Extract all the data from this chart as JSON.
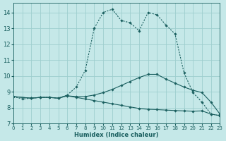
{
  "xlabel": "Humidex (Indice chaleur)",
  "bg_color": "#c5e8e8",
  "grid_color": "#9ecece",
  "line_color": "#1a5f5f",
  "xlim": [
    0,
    23
  ],
  "ylim": [
    7,
    14.6
  ],
  "xticks": [
    0,
    1,
    2,
    3,
    4,
    5,
    6,
    7,
    8,
    9,
    10,
    11,
    12,
    13,
    14,
    15,
    16,
    17,
    18,
    19,
    20,
    21,
    22,
    23
  ],
  "yticks": [
    7,
    8,
    9,
    10,
    11,
    12,
    13,
    14
  ],
  "line1_x": [
    0,
    1,
    2,
    3,
    4,
    5,
    6,
    7,
    8,
    9,
    10,
    11,
    12,
    13,
    14,
    15,
    16,
    17,
    18,
    19,
    20,
    21,
    22,
    23
  ],
  "line1_y": [
    8.7,
    8.55,
    8.6,
    8.65,
    8.65,
    8.6,
    8.8,
    9.3,
    10.35,
    13.0,
    14.0,
    14.2,
    13.5,
    13.35,
    12.85,
    14.0,
    13.85,
    13.2,
    12.65,
    10.2,
    8.95,
    8.35,
    7.6,
    7.5
  ],
  "line2_x": [
    0,
    2,
    3,
    4,
    5,
    6,
    7,
    8,
    9,
    10,
    11,
    12,
    13,
    14,
    15,
    16,
    17,
    18,
    19,
    20,
    21,
    22,
    23
  ],
  "line2_y": [
    8.7,
    8.6,
    8.65,
    8.65,
    8.6,
    8.75,
    8.7,
    8.7,
    8.8,
    8.95,
    9.15,
    9.4,
    9.65,
    9.9,
    10.1,
    10.1,
    9.8,
    9.55,
    9.3,
    9.1,
    8.95,
    8.35,
    7.6
  ],
  "line3_x": [
    0,
    2,
    3,
    4,
    5,
    6,
    7,
    8,
    9,
    10,
    11,
    12,
    13,
    14,
    15,
    16,
    17,
    18,
    19,
    20,
    21,
    22,
    23
  ],
  "line3_y": [
    8.7,
    8.6,
    8.65,
    8.65,
    8.6,
    8.75,
    8.65,
    8.55,
    8.45,
    8.35,
    8.25,
    8.15,
    8.05,
    7.95,
    7.9,
    7.88,
    7.85,
    7.82,
    7.8,
    7.78,
    7.8,
    7.6,
    7.5
  ]
}
